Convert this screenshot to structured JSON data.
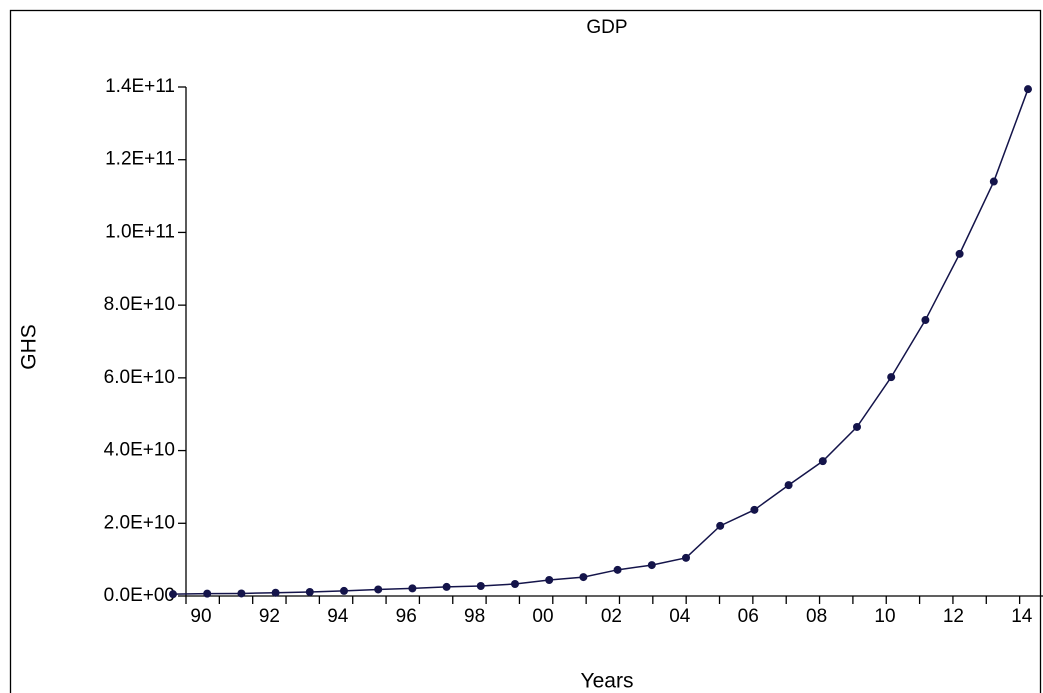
{
  "chart_data": {
    "type": "line",
    "title": "GDP",
    "x_label": "Years",
    "y_label": "GHS",
    "categories": [
      "90",
      null,
      "92",
      null,
      "94",
      null,
      "96",
      null,
      "98",
      null,
      "00",
      null,
      "02",
      null,
      "04",
      null,
      "06",
      null,
      "08",
      null,
      "10",
      null,
      "12",
      null,
      "14",
      null
    ],
    "series": [
      {
        "name": "GDP",
        "color": "#14144a",
        "values": [
          500000000,
          650000000,
          700000000,
          900000000,
          1100000000,
          1400000000,
          1800000000,
          2100000000,
          2500000000,
          2750000000,
          3300000000,
          4400000000,
          5200000000,
          7200000000,
          8500000000,
          10500000000,
          19300000000,
          23700000000,
          30500000000,
          37100000000,
          46500000000,
          60200000000,
          75900000000,
          94100000000,
          114000000000,
          139400000000
        ]
      }
    ],
    "ylim": [
      0,
      140000000000
    ],
    "yticks": [
      {
        "value": 0,
        "label": "0.0E+00"
      },
      {
        "value": 20000000000,
        "label": "2.0E+10"
      },
      {
        "value": 40000000000,
        "label": "4.0E+10"
      },
      {
        "value": 60000000000,
        "label": "6.0E+10"
      },
      {
        "value": 80000000000,
        "label": "8.0E+10"
      },
      {
        "value": 100000000000,
        "label": "1.0E+11"
      },
      {
        "value": 120000000000,
        "label": "1.2E+11"
      },
      {
        "value": 140000000000,
        "label": "1.4E+11"
      }
    ]
  }
}
